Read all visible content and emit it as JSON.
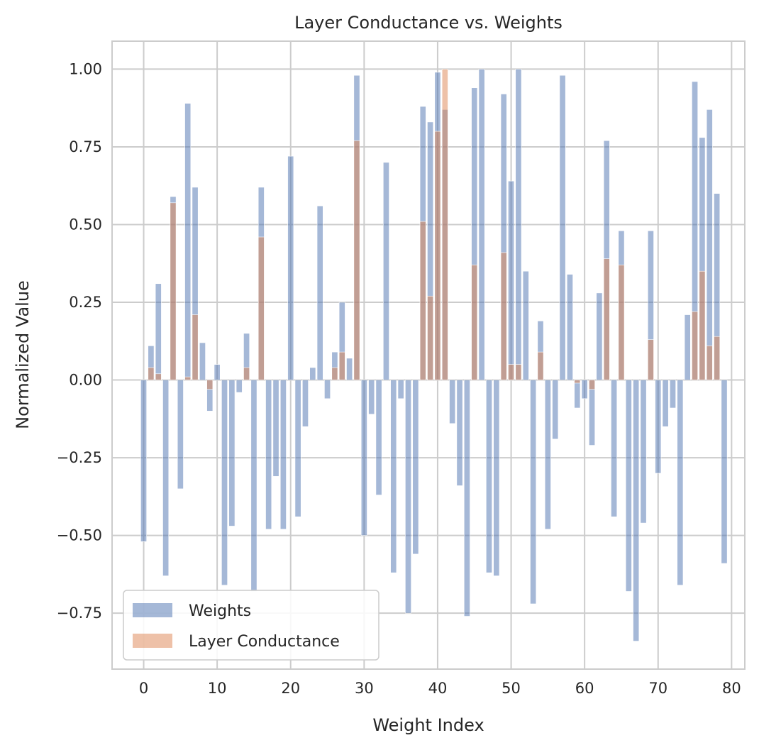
{
  "chart_data": {
    "type": "bar",
    "title": "Layer Conductance vs. Weights",
    "xlabel": "Weight Index",
    "ylabel": "Normalized Value",
    "xlim": [
      -4.3,
      81.8
    ],
    "ylim": [
      -0.93,
      1.09
    ],
    "xticks": [
      0,
      10,
      20,
      30,
      40,
      50,
      60,
      70,
      80
    ],
    "yticks": [
      -0.75,
      -0.5,
      -0.25,
      0.0,
      0.25,
      0.5,
      0.75,
      1.0
    ],
    "xtick_labels": [
      "0",
      "10",
      "20",
      "30",
      "40",
      "50",
      "60",
      "70",
      "80"
    ],
    "ytick_labels": [
      "−0.75",
      "−0.50",
      "−0.25",
      "0.00",
      "0.25",
      "0.50",
      "0.75",
      "1.00"
    ],
    "grid": true,
    "legend_position": "lower-left",
    "series": [
      {
        "name": "Weights",
        "color": "#4c72b0",
        "alpha": 0.5,
        "values": [
          -0.52,
          0.11,
          0.31,
          -0.63,
          0.59,
          -0.35,
          0.89,
          0.62,
          0.12,
          -0.1,
          0.05,
          -0.66,
          -0.47,
          -0.04,
          0.15,
          -0.68,
          0.62,
          -0.48,
          -0.31,
          -0.48,
          0.72,
          -0.44,
          -0.15,
          0.04,
          0.56,
          -0.06,
          0.09,
          0.25,
          0.07,
          0.98,
          -0.5,
          -0.11,
          -0.37,
          0.7,
          -0.62,
          -0.06,
          -0.75,
          -0.56,
          0.88,
          0.83,
          0.99,
          0.87,
          -0.14,
          -0.34,
          -0.76,
          0.94,
          1.0,
          -0.62,
          -0.63,
          0.92,
          0.64,
          1.0,
          0.35,
          -0.72,
          0.19,
          -0.48,
          -0.19,
          0.98,
          0.34,
          -0.09,
          -0.06,
          -0.21,
          0.28,
          0.77,
          -0.44,
          0.48,
          -0.68,
          -0.84,
          -0.46,
          0.48,
          -0.3,
          -0.15,
          -0.09,
          -0.66,
          0.21,
          0.96,
          0.78,
          0.87,
          0.6,
          -0.59
        ]
      },
      {
        "name": "Layer Conductance",
        "color": "#dd8452",
        "alpha": 0.5,
        "values": [
          0.0,
          0.04,
          0.02,
          0.0,
          0.57,
          0.0,
          0.01,
          0.21,
          0.0,
          -0.03,
          0.0,
          0.0,
          0.0,
          0.0,
          0.04,
          0.0,
          0.46,
          0.0,
          0.0,
          0.0,
          0.0,
          0.0,
          0.0,
          0.0,
          0.0,
          0.0,
          0.04,
          0.09,
          0.0,
          0.77,
          0.0,
          0.0,
          0.0,
          0.0,
          0.0,
          0.0,
          0.0,
          0.0,
          0.51,
          0.27,
          0.8,
          1.0,
          0.0,
          0.0,
          0.0,
          0.37,
          0.0,
          0.0,
          0.0,
          0.41,
          0.05,
          0.05,
          0.0,
          0.0,
          0.09,
          0.0,
          0.0,
          0.0,
          0.0,
          -0.01,
          0.0,
          -0.03,
          0.0,
          0.39,
          0.0,
          0.37,
          0.0,
          0.0,
          0.0,
          0.13,
          0.0,
          0.0,
          0.0,
          0.0,
          0.0,
          0.22,
          0.35,
          0.11,
          0.14,
          0.0
        ]
      }
    ]
  }
}
